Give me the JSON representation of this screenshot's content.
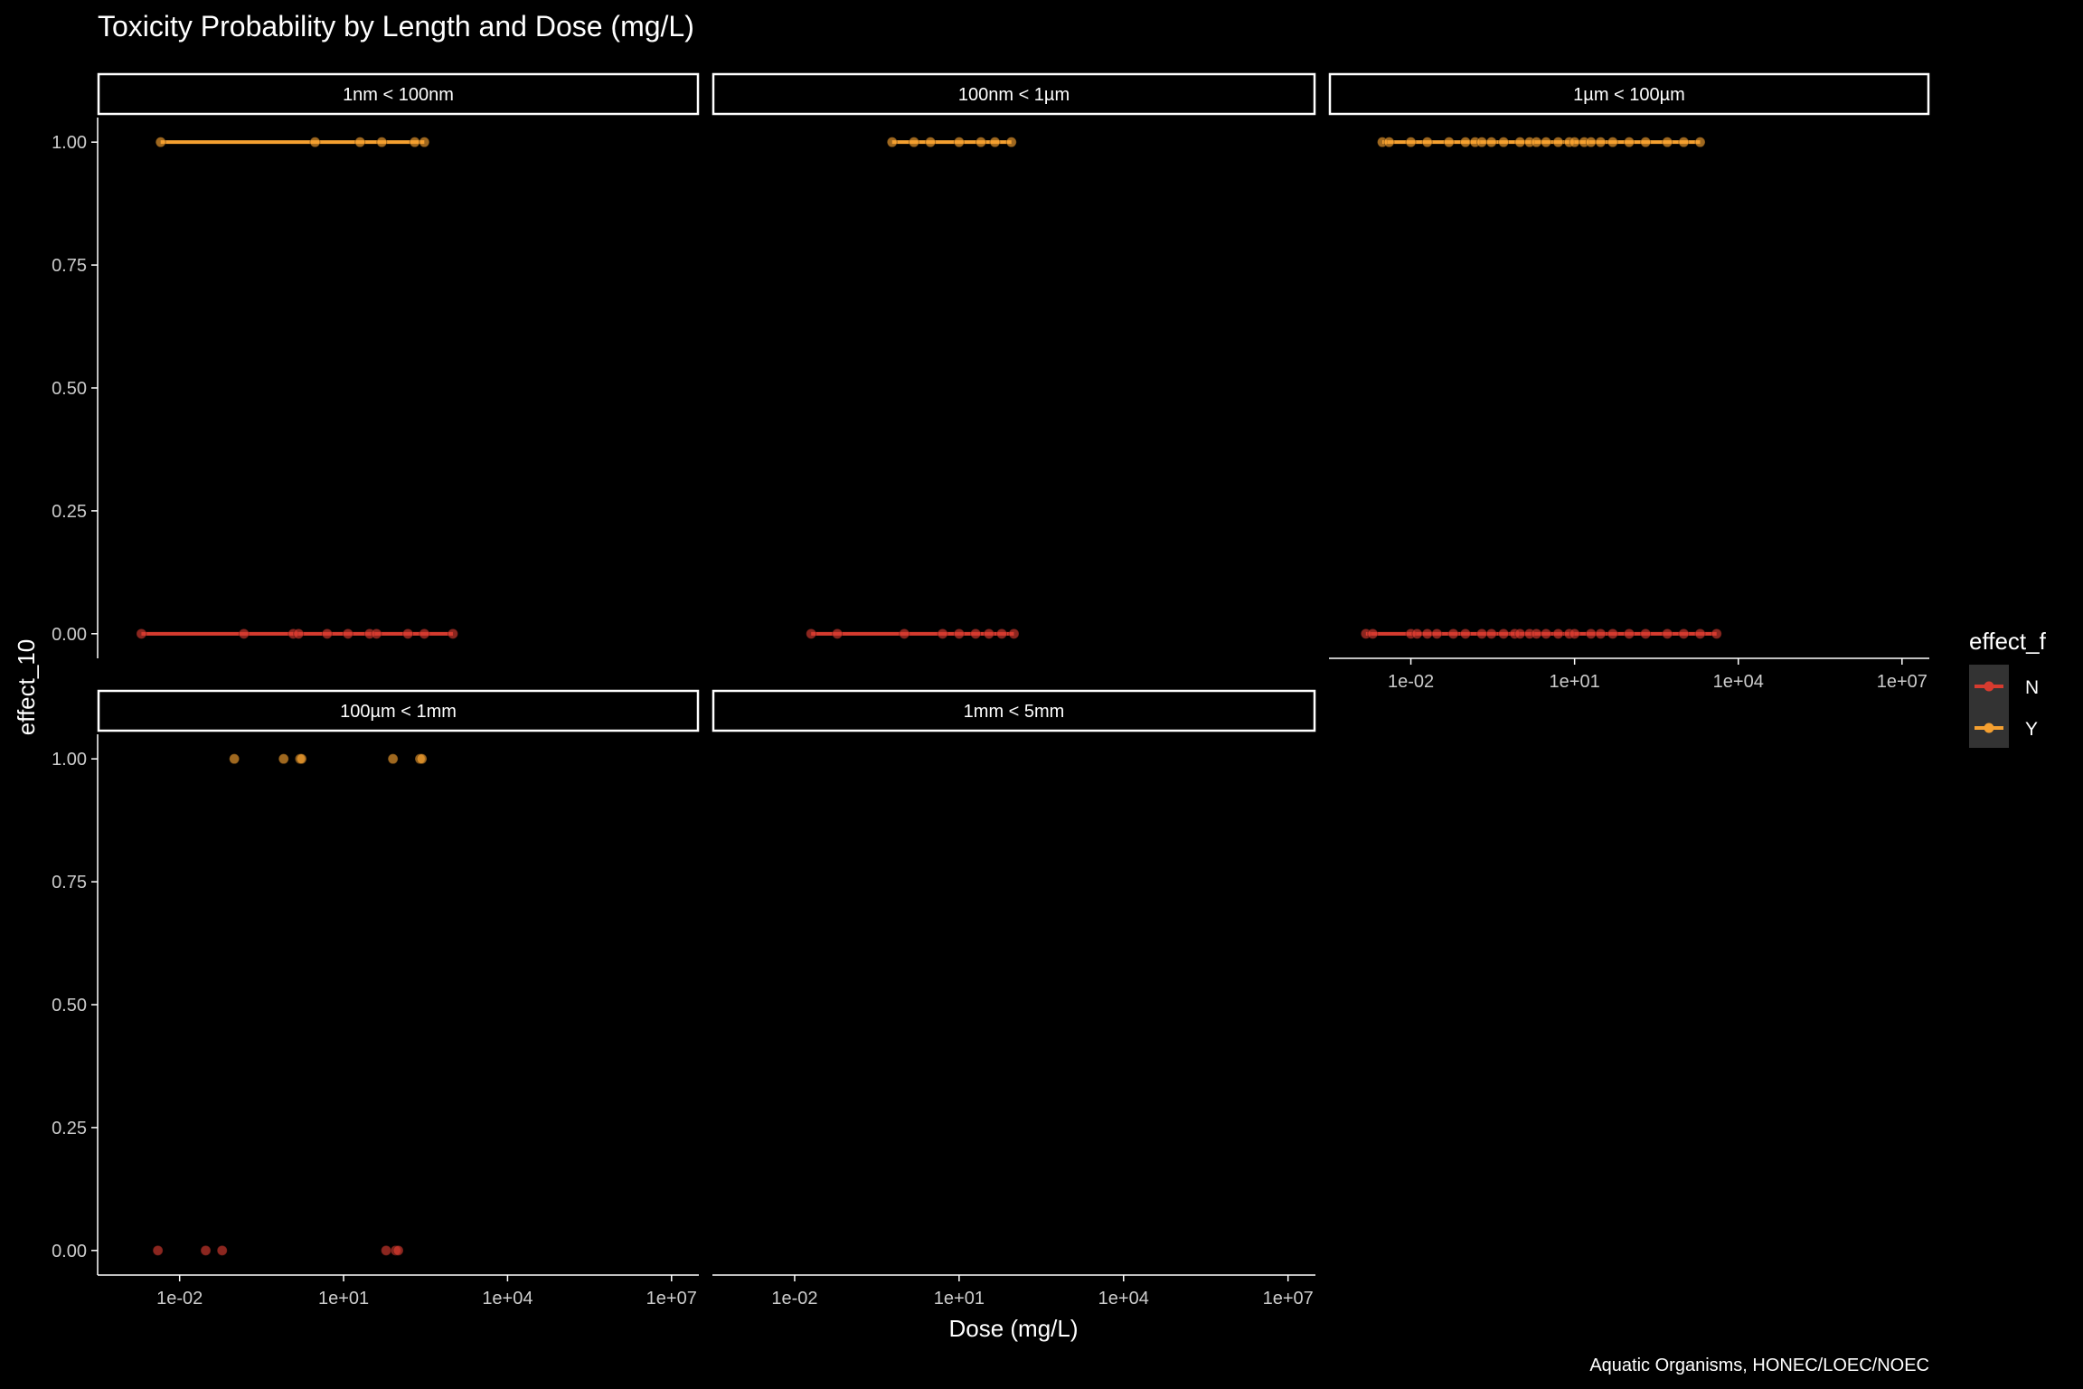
{
  "chart_data": {
    "type": "scatter",
    "title": "Toxicity Probability by Length and Dose (mg/L)",
    "xlabel": "Dose (mg/L)",
    "ylabel": "effect_10",
    "caption": "Aquatic Organisms, HONEC/LOEC/NOEC",
    "x_scale": "log10",
    "x_ticks": [
      "1e-02",
      "1e+01",
      "1e+04",
      "1e+07"
    ],
    "y_ticks": [
      "0.00",
      "0.25",
      "0.50",
      "0.75",
      "1.00"
    ],
    "ylim": [
      -0.05,
      1.05
    ],
    "xlim_log10": [
      -3.5,
      7.5
    ],
    "grid": false,
    "legend": {
      "title": "effect_f",
      "position": "right",
      "entries": [
        {
          "label": "N",
          "color": "#d63b2f"
        },
        {
          "label": "Y",
          "color": "#f5a030"
        }
      ]
    },
    "colors": {
      "N": "#d63b2f",
      "Y": "#f5a030",
      "background": "#000000",
      "foreground": "#ffffff"
    },
    "panels": [
      {
        "label": "1nm < 100nm",
        "fit_lines": true,
        "series": [
          {
            "name": "N",
            "y": 0,
            "x": [
              0.002,
              0.15,
              1.2,
              1.5,
              5,
              12,
              30,
              40,
              150,
              300,
              1000
            ]
          },
          {
            "name": "Y",
            "y": 1,
            "x": [
              0.0045,
              3,
              20,
              50,
              200,
              300
            ]
          }
        ]
      },
      {
        "label": "100nm < 1µm",
        "fit_lines": true,
        "series": [
          {
            "name": "N",
            "y": 0,
            "x": [
              0.02,
              0.06,
              1,
              5,
              10,
              20,
              35,
              60,
              100
            ]
          },
          {
            "name": "Y",
            "y": 1,
            "x": [
              0.6,
              1.5,
              3,
              10,
              25,
              45,
              90
            ]
          }
        ]
      },
      {
        "label": "1µm < 100µm",
        "fit_lines": true,
        "series": [
          {
            "name": "N",
            "y": 0,
            "x": [
              0.0015,
              0.002,
              0.01,
              0.013,
              0.02,
              0.03,
              0.06,
              0.1,
              0.2,
              0.3,
              0.5,
              0.8,
              1,
              1.5,
              2,
              3,
              5,
              8,
              10,
              20,
              30,
              50,
              100,
              200,
              500,
              1000,
              2000,
              4000
            ]
          },
          {
            "name": "Y",
            "y": 1,
            "x": [
              0.003,
              0.004,
              0.01,
              0.02,
              0.05,
              0.1,
              0.15,
              0.2,
              0.3,
              0.5,
              1,
              1.5,
              2,
              3,
              5,
              8,
              10,
              15,
              20,
              30,
              50,
              100,
              200,
              500,
              1000,
              2000
            ]
          }
        ]
      },
      {
        "label": "100µm < 1mm",
        "fit_lines": false,
        "series": [
          {
            "name": "N",
            "y": 0,
            "x": [
              0.004,
              0.03,
              0.06,
              60,
              90,
              100
            ]
          },
          {
            "name": "Y",
            "y": 1,
            "x": [
              0.1,
              0.8,
              1.6,
              1.7,
              80,
              250,
              270
            ]
          }
        ]
      },
      {
        "label": "1mm < 5mm",
        "fit_lines": false,
        "series": []
      }
    ]
  }
}
